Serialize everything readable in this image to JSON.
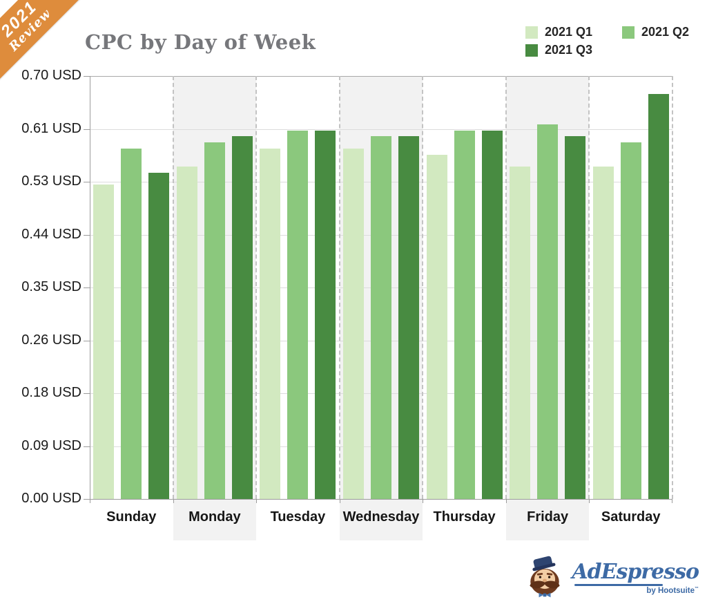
{
  "ribbon": {
    "line1": "2021",
    "line2": "Review",
    "color": "#de8c3c"
  },
  "title": "CPC by Day of Week",
  "title_color": "#76777b",
  "legend": [
    {
      "label": "2021 Q1",
      "color": "#d2e9c0"
    },
    {
      "label": "2021 Q2",
      "color": "#8bc87d"
    },
    {
      "label": "2021 Q3",
      "color": "#488b41"
    }
  ],
  "chart_data": {
    "type": "bar",
    "title": "CPC by Day of Week",
    "categories": [
      "Sunday",
      "Monday",
      "Tuesday",
      "Wednesday",
      "Thursday",
      "Friday",
      "Saturday"
    ],
    "series": [
      {
        "name": "2021 Q1",
        "color": "#d2e9c0",
        "values": [
          0.52,
          0.55,
          0.58,
          0.58,
          0.57,
          0.55,
          0.55
        ]
      },
      {
        "name": "2021 Q2",
        "color": "#8bc87d",
        "values": [
          0.58,
          0.59,
          0.61,
          0.6,
          0.61,
          0.62,
          0.59
        ]
      },
      {
        "name": "2021 Q3",
        "color": "#488b41",
        "values": [
          0.54,
          0.6,
          0.61,
          0.6,
          0.61,
          0.6,
          0.67
        ]
      }
    ],
    "unit": "USD",
    "xlabel": "",
    "ylabel": "",
    "ylim": [
      0.0,
      0.7
    ],
    "y_ticks": [
      "0.70 USD",
      "0.61 USD",
      "0.53 USD",
      "0.44 USD",
      "0.35 USD",
      "0.26 USD",
      "0.18 USD",
      "0.09 USD",
      "0.00 USD"
    ],
    "grid": true,
    "legend_position": "top-right",
    "banded_categories": [
      "Monday",
      "Wednesday",
      "Friday"
    ]
  },
  "footer_logo": {
    "brand": "AdEspresso",
    "byline": "by Hootsuite",
    "byline_mark": "™",
    "color": "#3d6aa5"
  }
}
